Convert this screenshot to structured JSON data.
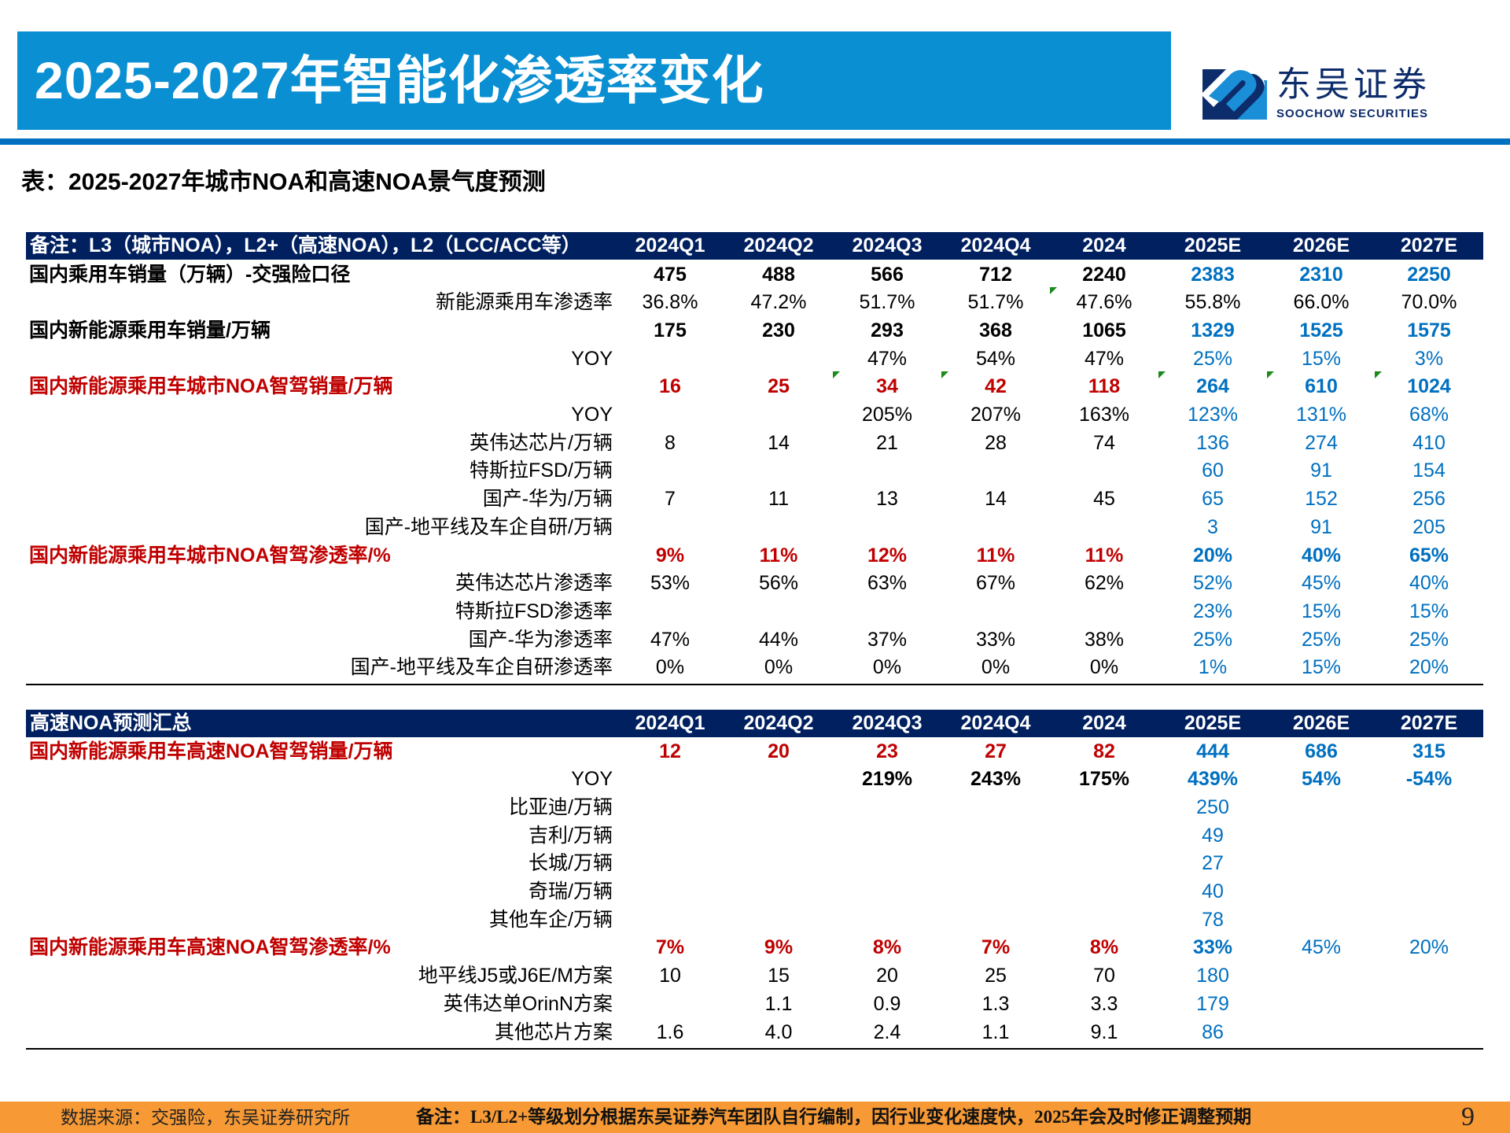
{
  "header": {
    "title": "2025-2027年智能化渗透率变化",
    "logo_cn": "东吴证券",
    "logo_en": "SOOCHOW SECURITIES"
  },
  "subtitle": "表：2025-2027年城市NOA和高速NOA景气度预测",
  "columns": [
    "2024Q1",
    "2024Q2",
    "2024Q3",
    "2024Q4",
    "2024",
    "2025E",
    "2026E",
    "2027E"
  ],
  "colors": {
    "title_bar": "#0a8fd3",
    "header_navy": "#002060",
    "red": "#c00000",
    "blue": "#0070c0",
    "footer": "#f79a36"
  },
  "table1": {
    "header_label": "备注：L3（城市NOA），L2+（高速NOA），L2（LCC/ACC等）",
    "rows": [
      {
        "label": "国内乘用车销量（万辆）-交强险口径",
        "style": "main",
        "values": [
          "475",
          "488",
          "566",
          "712",
          "2240",
          "2383",
          "2310",
          "2250"
        ]
      },
      {
        "label": "新能源乘用车渗透率",
        "style": "sub-black",
        "values": [
          "36.8%",
          "47.2%",
          "51.7%",
          "51.7%",
          "47.6%",
          "55.8%",
          "66.0%",
          "70.0%"
        ]
      },
      {
        "label": "国内新能源乘用车销量/万辆",
        "style": "main",
        "values": [
          "175",
          "230",
          "293",
          "368",
          "1065",
          "1329",
          "1525",
          "1575"
        ]
      },
      {
        "label": "YOY",
        "style": "sub",
        "values": [
          "",
          "",
          "47%",
          "54%",
          "47%",
          "25%",
          "15%",
          "3%"
        ]
      },
      {
        "label": "国内新能源乘用车城市NOA智驾销量/万辆",
        "style": "red",
        "values": [
          "16",
          "25",
          "34",
          "42",
          "118",
          "264",
          "610",
          "1024"
        ]
      },
      {
        "label": "YOY",
        "style": "sub",
        "values": [
          "",
          "",
          "205%",
          "207%",
          "163%",
          "123%",
          "131%",
          "68%"
        ]
      },
      {
        "label": "英伟达芯片/万辆",
        "style": "sub",
        "values": [
          "8",
          "14",
          "21",
          "28",
          "74",
          "136",
          "274",
          "410"
        ]
      },
      {
        "label": "特斯拉FSD/万辆",
        "style": "sub",
        "values": [
          "",
          "",
          "",
          "",
          "",
          "60",
          "91",
          "154"
        ]
      },
      {
        "label": "国产-华为/万辆",
        "style": "sub",
        "values": [
          "7",
          "11",
          "13",
          "14",
          "45",
          "65",
          "152",
          "256"
        ]
      },
      {
        "label": "国产-地平线及车企自研/万辆",
        "style": "sub",
        "values": [
          "",
          "",
          "",
          "",
          "",
          "3",
          "91",
          "205"
        ]
      },
      {
        "label": "国内新能源乘用车城市NOA智驾渗透率/%",
        "style": "red",
        "values": [
          "9%",
          "11%",
          "12%",
          "11%",
          "11%",
          "20%",
          "40%",
          "65%"
        ]
      },
      {
        "label": "英伟达芯片渗透率",
        "style": "sub",
        "values": [
          "53%",
          "56%",
          "63%",
          "67%",
          "62%",
          "52%",
          "45%",
          "40%"
        ]
      },
      {
        "label": "特斯拉FSD渗透率",
        "style": "sub",
        "values": [
          "",
          "",
          "",
          "",
          "",
          "23%",
          "15%",
          "15%"
        ]
      },
      {
        "label": "国产-华为渗透率",
        "style": "sub",
        "values": [
          "47%",
          "44%",
          "37%",
          "33%",
          "38%",
          "25%",
          "25%",
          "25%"
        ]
      },
      {
        "label": "国产-地平线及车企自研渗透率",
        "style": "sub",
        "values": [
          "0%",
          "0%",
          "0%",
          "0%",
          "0%",
          "1%",
          "15%",
          "20%"
        ]
      }
    ]
  },
  "table2": {
    "header_label": "高速NOA预测汇总",
    "rows": [
      {
        "label": "国内新能源乘用车高速NOA智驾销量/万辆",
        "style": "red",
        "values": [
          "12",
          "20",
          "23",
          "27",
          "82",
          "444",
          "686",
          "315"
        ]
      },
      {
        "label": "YOY",
        "style": "sub-boldvals",
        "values": [
          "",
          "",
          "219%",
          "243%",
          "175%",
          "439%",
          "54%",
          "-54%"
        ]
      },
      {
        "label": "比亚迪/万辆",
        "style": "sub",
        "values": [
          "",
          "",
          "",
          "",
          "",
          "250",
          "",
          ""
        ]
      },
      {
        "label": "吉利/万辆",
        "style": "sub",
        "values": [
          "",
          "",
          "",
          "",
          "",
          "49",
          "",
          ""
        ]
      },
      {
        "label": "长城/万辆",
        "style": "sub",
        "values": [
          "",
          "",
          "",
          "",
          "",
          "27",
          "",
          ""
        ]
      },
      {
        "label": "奇瑞/万辆",
        "style": "sub",
        "values": [
          "",
          "",
          "",
          "",
          "",
          "40",
          "",
          ""
        ]
      },
      {
        "label": "其他车企/万辆",
        "style": "sub",
        "values": [
          "",
          "",
          "",
          "",
          "",
          "78",
          "",
          ""
        ]
      },
      {
        "label": "国内新能源乘用车高速NOA智驾渗透率/%",
        "style": "red-partial",
        "values": [
          "7%",
          "9%",
          "8%",
          "7%",
          "8%",
          "33%",
          "45%",
          "20%"
        ]
      },
      {
        "label": "地平线J5或J6E/M方案",
        "style": "sub",
        "values": [
          "10",
          "15",
          "20",
          "25",
          "70",
          "180",
          "",
          ""
        ]
      },
      {
        "label": "英伟达单OrinN方案",
        "style": "sub",
        "values": [
          "",
          "1.1",
          "0.9",
          "1.3",
          "3.3",
          "179",
          "",
          ""
        ]
      },
      {
        "label": "其他芯片方案",
        "style": "sub",
        "values": [
          "1.6",
          "4.0",
          "2.4",
          "1.1",
          "9.1",
          "86",
          "",
          ""
        ]
      }
    ]
  },
  "footer": {
    "source": "数据来源：交强险，东吴证券研究所",
    "note": "备注：L3/L2+等级划分根据东吴证券汽车团队自行编制，因行业变化速度快，2025年会及时修正调整预期",
    "page": "9"
  }
}
